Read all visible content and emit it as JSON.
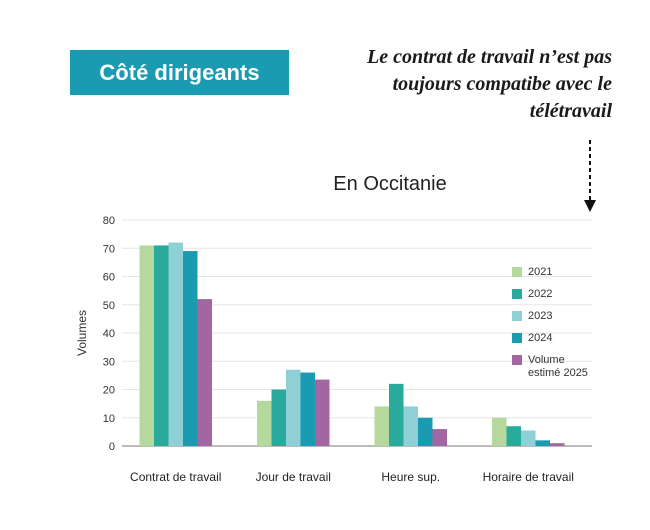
{
  "header": {
    "badge": "Côté dirigeants",
    "quote_lines": [
      "Le contrat de travail n’est pas",
      "toujours compatibe avec le",
      "télétravail"
    ]
  },
  "colors": {
    "badge_bg": "#1a9bb1",
    "series": [
      "#b5d99c",
      "#2aaa9c",
      "#8fcfd6",
      "#1a9bb1",
      "#a267a3"
    ]
  },
  "chart_data": {
    "type": "bar",
    "title": "En Occitanie",
    "xlabel": "",
    "ylabel": "Volumes",
    "ylim": [
      0,
      80
    ],
    "yticks": [
      0,
      10,
      20,
      30,
      40,
      50,
      60,
      70,
      80
    ],
    "grid": true,
    "legend_position": "right",
    "categories": [
      "Contrat de travail",
      "Jour de travail",
      "Heure sup.",
      "Horaire de travail"
    ],
    "series": [
      {
        "name": "2021",
        "values": [
          71,
          16,
          14,
          10
        ]
      },
      {
        "name": "2022",
        "values": [
          71,
          20,
          22,
          7
        ]
      },
      {
        "name": "2023",
        "values": [
          72,
          27,
          14,
          5.5
        ]
      },
      {
        "name": "2024",
        "values": [
          69,
          26,
          10,
          2
        ]
      },
      {
        "name": "Volume estimé 2025",
        "values": [
          52,
          23.5,
          6,
          1
        ]
      }
    ]
  }
}
